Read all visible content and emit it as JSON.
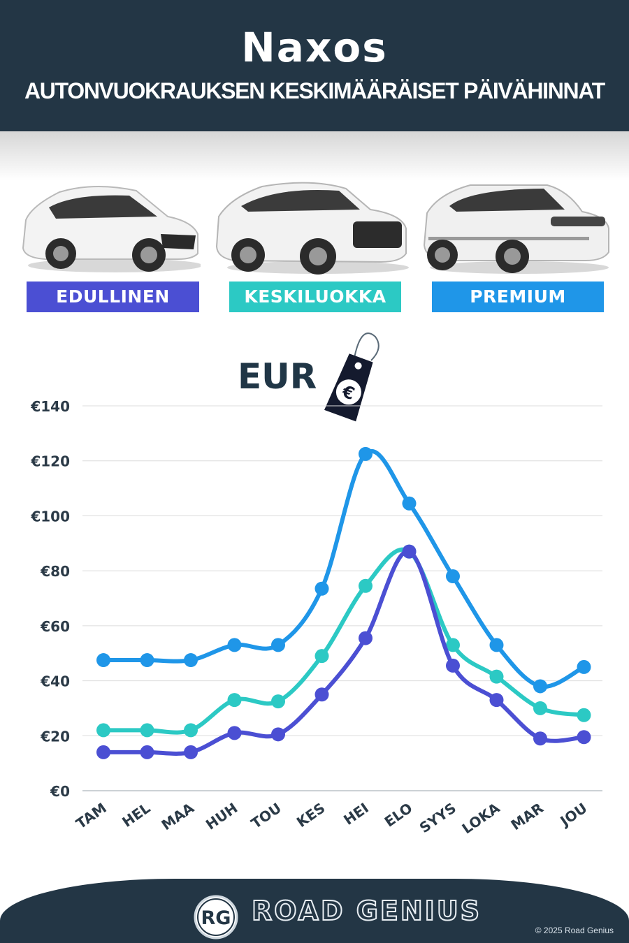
{
  "header": {
    "title": "Naxos",
    "subtitle": "AUTONVUOKRAUKSEN KESKIMÄÄRÄISET PÄIVÄHINNAT"
  },
  "categories": {
    "economy": "EDULLINEN",
    "mid": "KESKILUOKKA",
    "premium": "PREMIUM"
  },
  "currency_label": "EUR",
  "colors": {
    "economy": "#4b4fd3",
    "mid": "#2cc9c4",
    "premium": "#1f96e8",
    "navy": "#233645"
  },
  "footer": {
    "logo_initials": "RG",
    "brand": "ROAD GENIUS",
    "copyright": "© 2025 Road Genius"
  },
  "chart_data": {
    "type": "line",
    "categories": [
      "TAM",
      "HEL",
      "MAA",
      "HUH",
      "TOU",
      "KES",
      "HEI",
      "ELO",
      "SYYS",
      "LOKA",
      "MAR",
      "JOU"
    ],
    "series": [
      {
        "name": "EDULLINEN",
        "color": "#4b4fd3",
        "values": [
          14,
          14,
          14,
          21,
          20.5,
          35,
          55.5,
          87,
          45.5,
          33,
          19,
          19.5
        ]
      },
      {
        "name": "KESKILUOKKA",
        "color": "#2cc9c4",
        "values": [
          22,
          22,
          22,
          33,
          32.5,
          49,
          74.5,
          87,
          53,
          41.5,
          30,
          27.5
        ]
      },
      {
        "name": "PREMIUM",
        "color": "#1f96e8",
        "values": [
          47.5,
          47.5,
          47.5,
          53,
          53,
          73.5,
          122.5,
          104.5,
          78,
          53,
          38,
          45
        ]
      }
    ],
    "ylim": [
      0,
      140
    ],
    "yticks": [
      "€0",
      "€20",
      "€40",
      "€60",
      "€80",
      "€100",
      "€120",
      "€140"
    ],
    "grid": true
  }
}
